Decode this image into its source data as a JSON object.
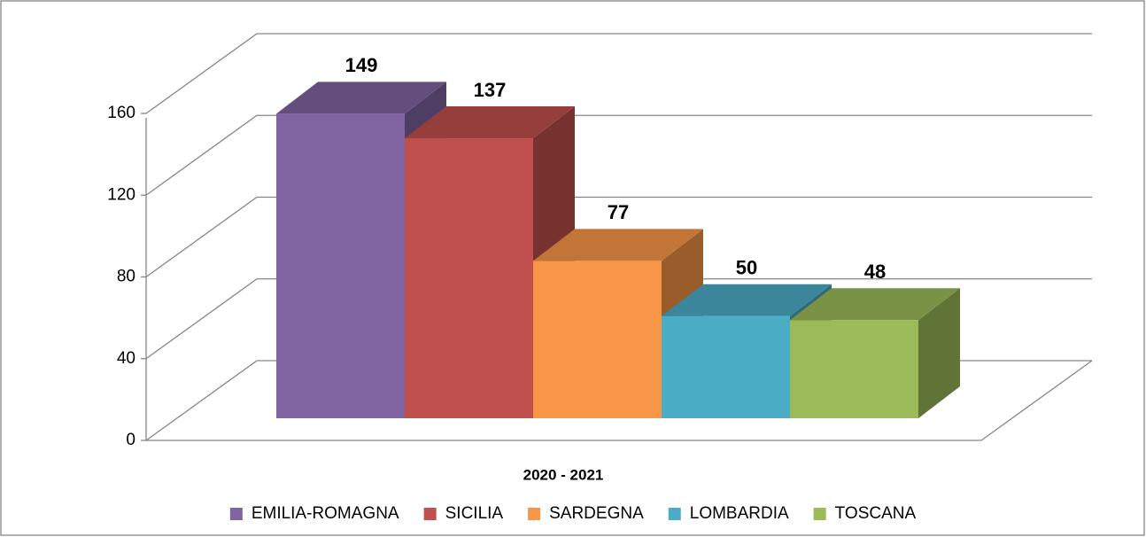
{
  "chart_data": {
    "type": "bar3d",
    "categories": [
      "2020 - 2021"
    ],
    "series": [
      {
        "name": "EMILIA-ROMAGNA",
        "color": "#8064a2",
        "values": [
          149
        ]
      },
      {
        "name": "SICILIA",
        "color": "#c0504d",
        "values": [
          137
        ]
      },
      {
        "name": "SARDEGNA",
        "color": "#f79646",
        "values": [
          77
        ]
      },
      {
        "name": "LOMBARDIA",
        "color": "#4bacc6",
        "values": [
          50
        ]
      },
      {
        "name": "TOSCANA",
        "color": "#9bbb59",
        "values": [
          48
        ]
      }
    ],
    "ylim": [
      0,
      160
    ],
    "yticks": [
      0,
      40,
      80,
      120,
      160
    ],
    "grid": true,
    "legend": "bottom"
  }
}
